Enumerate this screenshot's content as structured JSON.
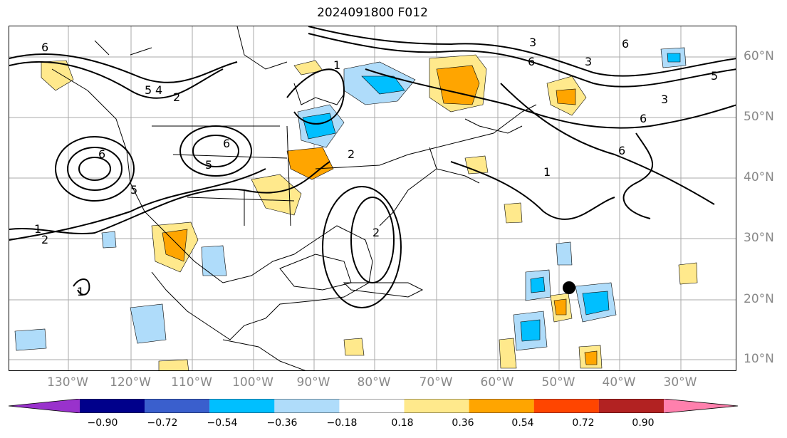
{
  "title": "2024091800 F012",
  "longitude_labels": [
    "130°W",
    "120°W",
    "110°W",
    "100°W",
    "90°W",
    "80°W",
    "70°W",
    "60°W",
    "50°W",
    "40°W",
    "30°W"
  ],
  "latitude_labels": [
    "60°N",
    "50°N",
    "40°N",
    "30°N",
    "20°N",
    "10°N"
  ],
  "contour_labels": [
    "6",
    "5",
    "4",
    "2",
    "1",
    "2",
    "6",
    "5",
    "5",
    "6",
    "1",
    "2",
    "1",
    "2",
    "3",
    "6",
    "3",
    "6",
    "5",
    "3",
    "6",
    "6",
    "1"
  ],
  "colorbar": {
    "ticks": [
      "−0.90",
      "−0.72",
      "−0.54",
      "−0.36",
      "−0.18",
      "0.18",
      "0.36",
      "0.54",
      "0.72",
      "0.90"
    ],
    "colors": [
      "#9932cc",
      "#00008b",
      "#3a5fcd",
      "#00bfff",
      "#afdcfa",
      "#ffffff",
      "#ffe98c",
      "#ffa500",
      "#ff4500",
      "#b22222",
      "#ff80ad"
    ]
  }
}
